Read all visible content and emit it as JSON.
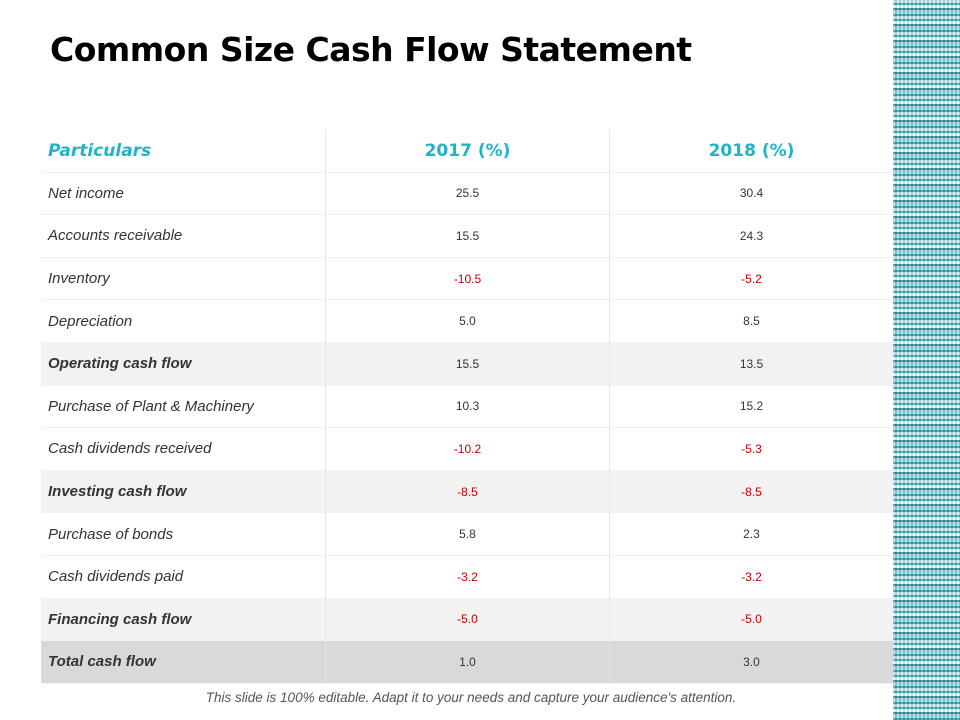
{
  "title": "Common Size Cash Flow Statement",
  "table": {
    "headers": [
      "Particulars",
      "2017 (%)",
      "2018 (%)"
    ],
    "rows": [
      {
        "label": "Net income",
        "v2017": "25.5",
        "v2018": "30.4",
        "type": "item"
      },
      {
        "label": "Accounts receivable",
        "v2017": "15.5",
        "v2018": "24.3",
        "type": "item"
      },
      {
        "label": "Inventory",
        "v2017": "-10.5",
        "v2018": "-5.2",
        "type": "item"
      },
      {
        "label": "Depreciation",
        "v2017": "5.0",
        "v2018": "8.5",
        "type": "item"
      },
      {
        "label": "Operating cash flow",
        "v2017": "15.5",
        "v2018": "13.5",
        "type": "sub"
      },
      {
        "label": "Purchase of Plant & Machinery",
        "v2017": "10.3",
        "v2018": "15.2",
        "type": "item"
      },
      {
        "label": "Cash dividends received",
        "v2017": "-10.2",
        "v2018": "-5.3",
        "type": "item"
      },
      {
        "label": "Investing cash flow",
        "v2017": "-8.5",
        "v2018": "-8.5",
        "type": "sub"
      },
      {
        "label": "Purchase of bonds",
        "v2017": "5.8",
        "v2018": "2.3",
        "type": "item"
      },
      {
        "label": "Cash dividends paid",
        "v2017": "-3.2",
        "v2018": "-3.2",
        "type": "item"
      },
      {
        "label": "Financing cash flow",
        "v2017": "-5.0",
        "v2018": "-5.0",
        "type": "sub"
      },
      {
        "label": "Total cash flow",
        "v2017": "1.0",
        "v2018": "3.0",
        "type": "tot"
      }
    ]
  },
  "footer": "This slide is 100% editable.  Adapt it to your needs and capture your audience's attention.",
  "colors": {
    "accent": "#22b3c7",
    "negative": "#c00000",
    "subtotal_bg": "#f2f2f2",
    "total_bg": "#d9d9d9"
  }
}
